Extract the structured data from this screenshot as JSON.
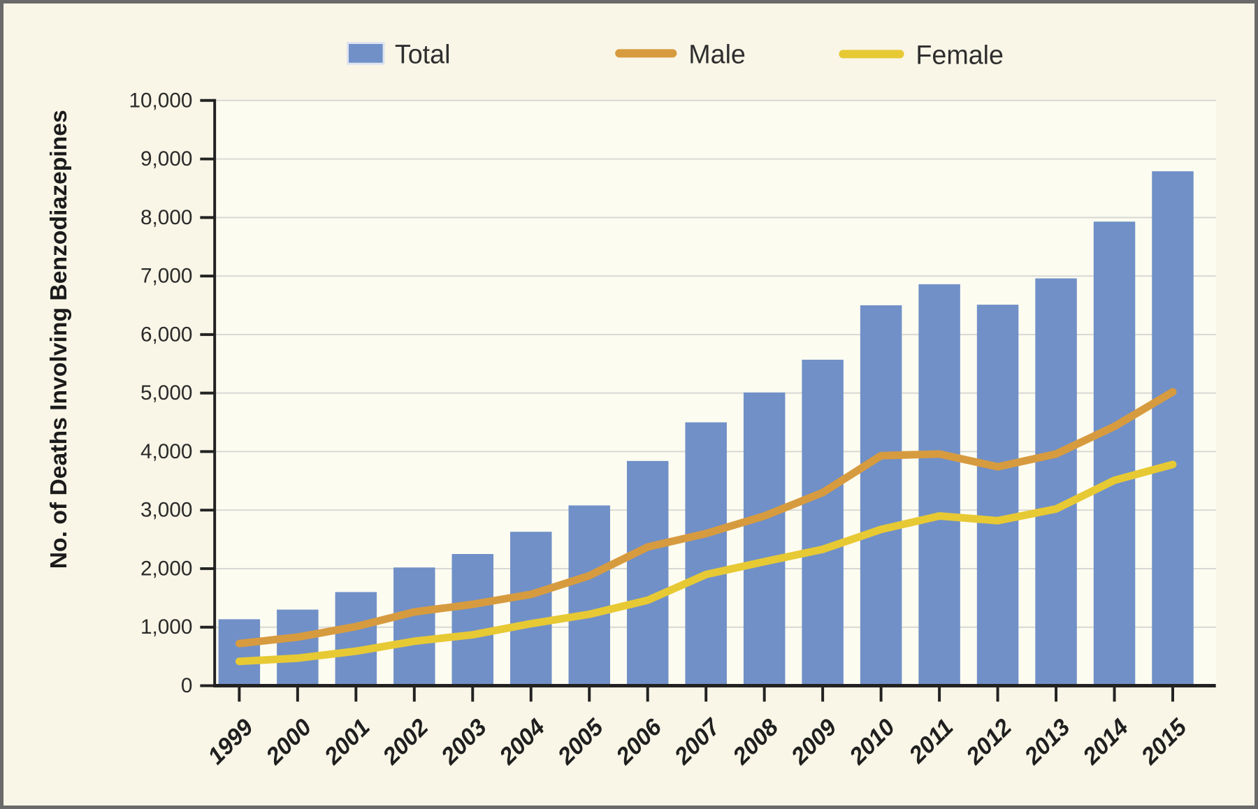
{
  "chart_data": {
    "type": "bar",
    "title": "",
    "xlabel": "",
    "ylabel": "No. of Deaths Involving Benzodiazepines",
    "ylim": [
      0,
      10000
    ],
    "ytick_step": 1000,
    "ytick_labels": [
      "0",
      "1,000",
      "2,000",
      "3,000",
      "4,000",
      "5,000",
      "6,000",
      "7,000",
      "8,000",
      "9,000",
      "10,000"
    ],
    "grid": true,
    "legend_position": "top",
    "categories": [
      "1999",
      "2000",
      "2001",
      "2002",
      "2003",
      "2004",
      "2005",
      "2006",
      "2007",
      "2008",
      "2009",
      "2010",
      "2011",
      "2012",
      "2013",
      "2014",
      "2015"
    ],
    "series": [
      {
        "name": "Total",
        "render": "bar",
        "color": "#7090c7",
        "values": [
          1135,
          1300,
          1600,
          2020,
          2250,
          2630,
          3080,
          3840,
          4500,
          5010,
          5570,
          6500,
          6860,
          6510,
          6960,
          7930,
          8790
        ]
      },
      {
        "name": "Male",
        "render": "line",
        "color": "#d79b3f",
        "values": [
          720,
          830,
          1010,
          1260,
          1390,
          1560,
          1880,
          2370,
          2600,
          2900,
          3300,
          3930,
          3960,
          3740,
          3960,
          4430,
          5020
        ]
      },
      {
        "name": "Female",
        "render": "line",
        "color": "#e7c934",
        "values": [
          415,
          470,
          590,
          760,
          870,
          1060,
          1220,
          1460,
          1900,
          2120,
          2330,
          2670,
          2900,
          2820,
          3020,
          3510,
          3780
        ]
      }
    ],
    "colors": {
      "canvas_bg": "#f9f6e7",
      "plot_bg": "#fdfcf1",
      "frame_border": "#6a6a6a",
      "grid": "#d8d8d4",
      "axis": "#222222",
      "text": "#2a2a2a",
      "legend_swatch_border": "#dde3f0"
    }
  }
}
